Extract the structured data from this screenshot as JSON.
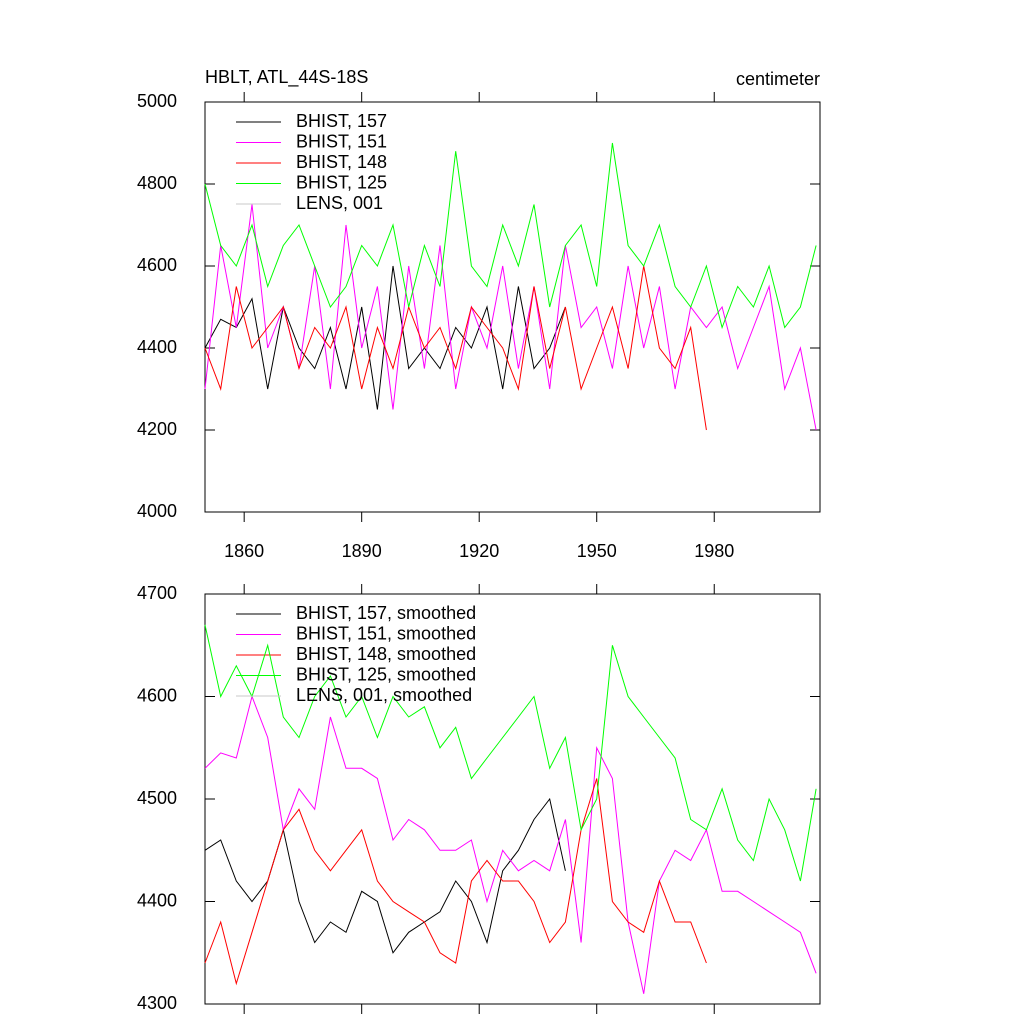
{
  "chart_data": [
    {
      "type": "line",
      "title": "HBLT, ATL_44S-18S",
      "subtitle": "centimeter",
      "x": [
        1850,
        1854,
        1858,
        1862,
        1866,
        1870,
        1874,
        1878,
        1882,
        1886,
        1890,
        1894,
        1898,
        1902,
        1906,
        1910,
        1914,
        1918,
        1922,
        1926,
        1930,
        1934,
        1938,
        1942,
        1946,
        1950,
        1954,
        1958,
        1962,
        1966,
        1970,
        1974,
        1978,
        1982,
        1986,
        1990,
        1994,
        1998,
        2002,
        2006
      ],
      "xlim": [
        1850,
        2007
      ],
      "xticks": [
        1860,
        1890,
        1920,
        1950,
        1980
      ],
      "ylim": [
        4000,
        5000
      ],
      "yticks": [
        4000,
        4200,
        4400,
        4600,
        4800,
        5000
      ],
      "series": [
        {
          "name": "BHIST, 157",
          "color": "#000000",
          "values": [
            4400,
            4470,
            4450,
            4520,
            4300,
            4500,
            4400,
            4350,
            4450,
            4300,
            4500,
            4250,
            4600,
            4350,
            4400,
            4350,
            4450,
            4400,
            4500,
            4300,
            4550,
            4350,
            4400,
            4500,
            null,
            null,
            null,
            null,
            null,
            null,
            null,
            null,
            null,
            null,
            null,
            null,
            null,
            null,
            null,
            null
          ]
        },
        {
          "name": "BHIST, 151",
          "color": "#ff00ff",
          "values": [
            4300,
            4650,
            4450,
            4750,
            4400,
            4500,
            4350,
            4600,
            4300,
            4700,
            4400,
            4550,
            4250,
            4600,
            4350,
            4650,
            4300,
            4500,
            4400,
            4600,
            4350,
            4550,
            4300,
            4650,
            4450,
            4500,
            4350,
            4600,
            4400,
            4550,
            4300,
            4500,
            4450,
            4500,
            4350,
            4450,
            4550,
            4300,
            4400,
            4200
          ]
        },
        {
          "name": "BHIST, 148",
          "color": "#ff0000",
          "values": [
            4400,
            4300,
            4550,
            4400,
            4450,
            4500,
            4350,
            4450,
            4400,
            4500,
            4300,
            4450,
            4350,
            4500,
            4400,
            4450,
            4350,
            4500,
            4450,
            4400,
            4300,
            4550,
            4350,
            4500,
            4300,
            4400,
            4500,
            4350,
            4600,
            4400,
            4350,
            4450,
            4200,
            null,
            null,
            null,
            null,
            null,
            null,
            null
          ]
        },
        {
          "name": "BHIST, 125",
          "color": "#00ff00",
          "values": [
            4800,
            4650,
            4600,
            4700,
            4550,
            4650,
            4700,
            4600,
            4500,
            4550,
            4650,
            4600,
            4700,
            4500,
            4650,
            4550,
            4880,
            4600,
            4550,
            4700,
            4600,
            4750,
            4500,
            4650,
            4700,
            4550,
            4900,
            4650,
            4600,
            4700,
            4550,
            4500,
            4600,
            4450,
            4550,
            4500,
            4600,
            4450,
            4500,
            4650
          ]
        },
        {
          "name": "LENS, 001",
          "color": "#c8c8c8",
          "values": [
            null,
            null,
            null,
            null,
            null,
            null,
            null,
            null,
            null,
            null,
            null,
            null,
            null,
            null,
            null,
            null,
            null,
            null,
            null,
            null,
            null,
            null,
            null,
            null,
            null,
            null,
            null,
            null,
            null,
            null,
            null,
            null,
            null,
            null,
            null,
            null,
            null,
            null,
            null,
            null
          ]
        }
      ]
    },
    {
      "type": "line",
      "x": [
        1850,
        1854,
        1858,
        1862,
        1866,
        1870,
        1874,
        1878,
        1882,
        1886,
        1890,
        1894,
        1898,
        1902,
        1906,
        1910,
        1914,
        1918,
        1922,
        1926,
        1930,
        1934,
        1938,
        1942,
        1946,
        1950,
        1954,
        1958,
        1962,
        1966,
        1970,
        1974,
        1978,
        1982,
        1986,
        1990,
        1994,
        1998,
        2002,
        2006
      ],
      "xlim": [
        1850,
        2007
      ],
      "ylim": [
        4300,
        4700
      ],
      "yticks": [
        4300,
        4400,
        4500,
        4600,
        4700
      ],
      "series": [
        {
          "name": "BHIST, 157, smoothed",
          "color": "#000000",
          "values": [
            4450,
            4460,
            4420,
            4400,
            4420,
            4470,
            4400,
            4360,
            4380,
            4370,
            4410,
            4400,
            4350,
            4370,
            4380,
            4390,
            4420,
            4400,
            4360,
            4430,
            4450,
            4480,
            4500,
            4430,
            null,
            null,
            null,
            null,
            null,
            null,
            null,
            null,
            null,
            null,
            null,
            null,
            null,
            null,
            null,
            null
          ]
        },
        {
          "name": "BHIST, 151, smoothed",
          "color": "#ff00ff",
          "values": [
            4530,
            4545,
            4540,
            4600,
            4560,
            4470,
            4510,
            4490,
            4580,
            4530,
            4530,
            4520,
            4460,
            4480,
            4470,
            4450,
            4450,
            4460,
            4400,
            4450,
            4430,
            4440,
            4430,
            4480,
            4360,
            4550,
            4520,
            4380,
            4310,
            4420,
            4450,
            4440,
            4470,
            4410,
            4410,
            4400,
            4390,
            4380,
            4370,
            4330
          ]
        },
        {
          "name": "BHIST, 148, smoothed",
          "color": "#ff0000",
          "values": [
            4340,
            4380,
            4320,
            4370,
            4420,
            4470,
            4490,
            4450,
            4430,
            4450,
            4470,
            4420,
            4400,
            4390,
            4380,
            4350,
            4340,
            4420,
            4440,
            4420,
            4420,
            4400,
            4360,
            4380,
            4470,
            4520,
            4400,
            4380,
            4370,
            4420,
            4380,
            4380,
            4340,
            null,
            null,
            null,
            null,
            null,
            null,
            null
          ]
        },
        {
          "name": "BHIST, 125, smoothed",
          "color": "#00ff00",
          "values": [
            4670,
            4600,
            4630,
            4600,
            4650,
            4580,
            4560,
            4600,
            4620,
            4580,
            4600,
            4560,
            4600,
            4580,
            4590,
            4550,
            4570,
            4520,
            4540,
            4560,
            4580,
            4600,
            4530,
            4560,
            4470,
            4500,
            4650,
            4600,
            4580,
            4560,
            4540,
            4480,
            4470,
            4510,
            4460,
            4440,
            4500,
            4470,
            4420,
            4510
          ]
        },
        {
          "name": "LENS, 001, smoothed",
          "color": "#c8c8c8",
          "values": [
            null,
            null,
            null,
            null,
            null,
            null,
            null,
            null,
            null,
            null,
            null,
            null,
            null,
            null,
            null,
            null,
            null,
            null,
            null,
            null,
            null,
            null,
            null,
            null,
            null,
            null,
            null,
            null,
            null,
            null,
            null,
            null,
            null,
            null,
            null,
            null,
            null,
            null,
            null,
            null
          ]
        }
      ]
    }
  ]
}
